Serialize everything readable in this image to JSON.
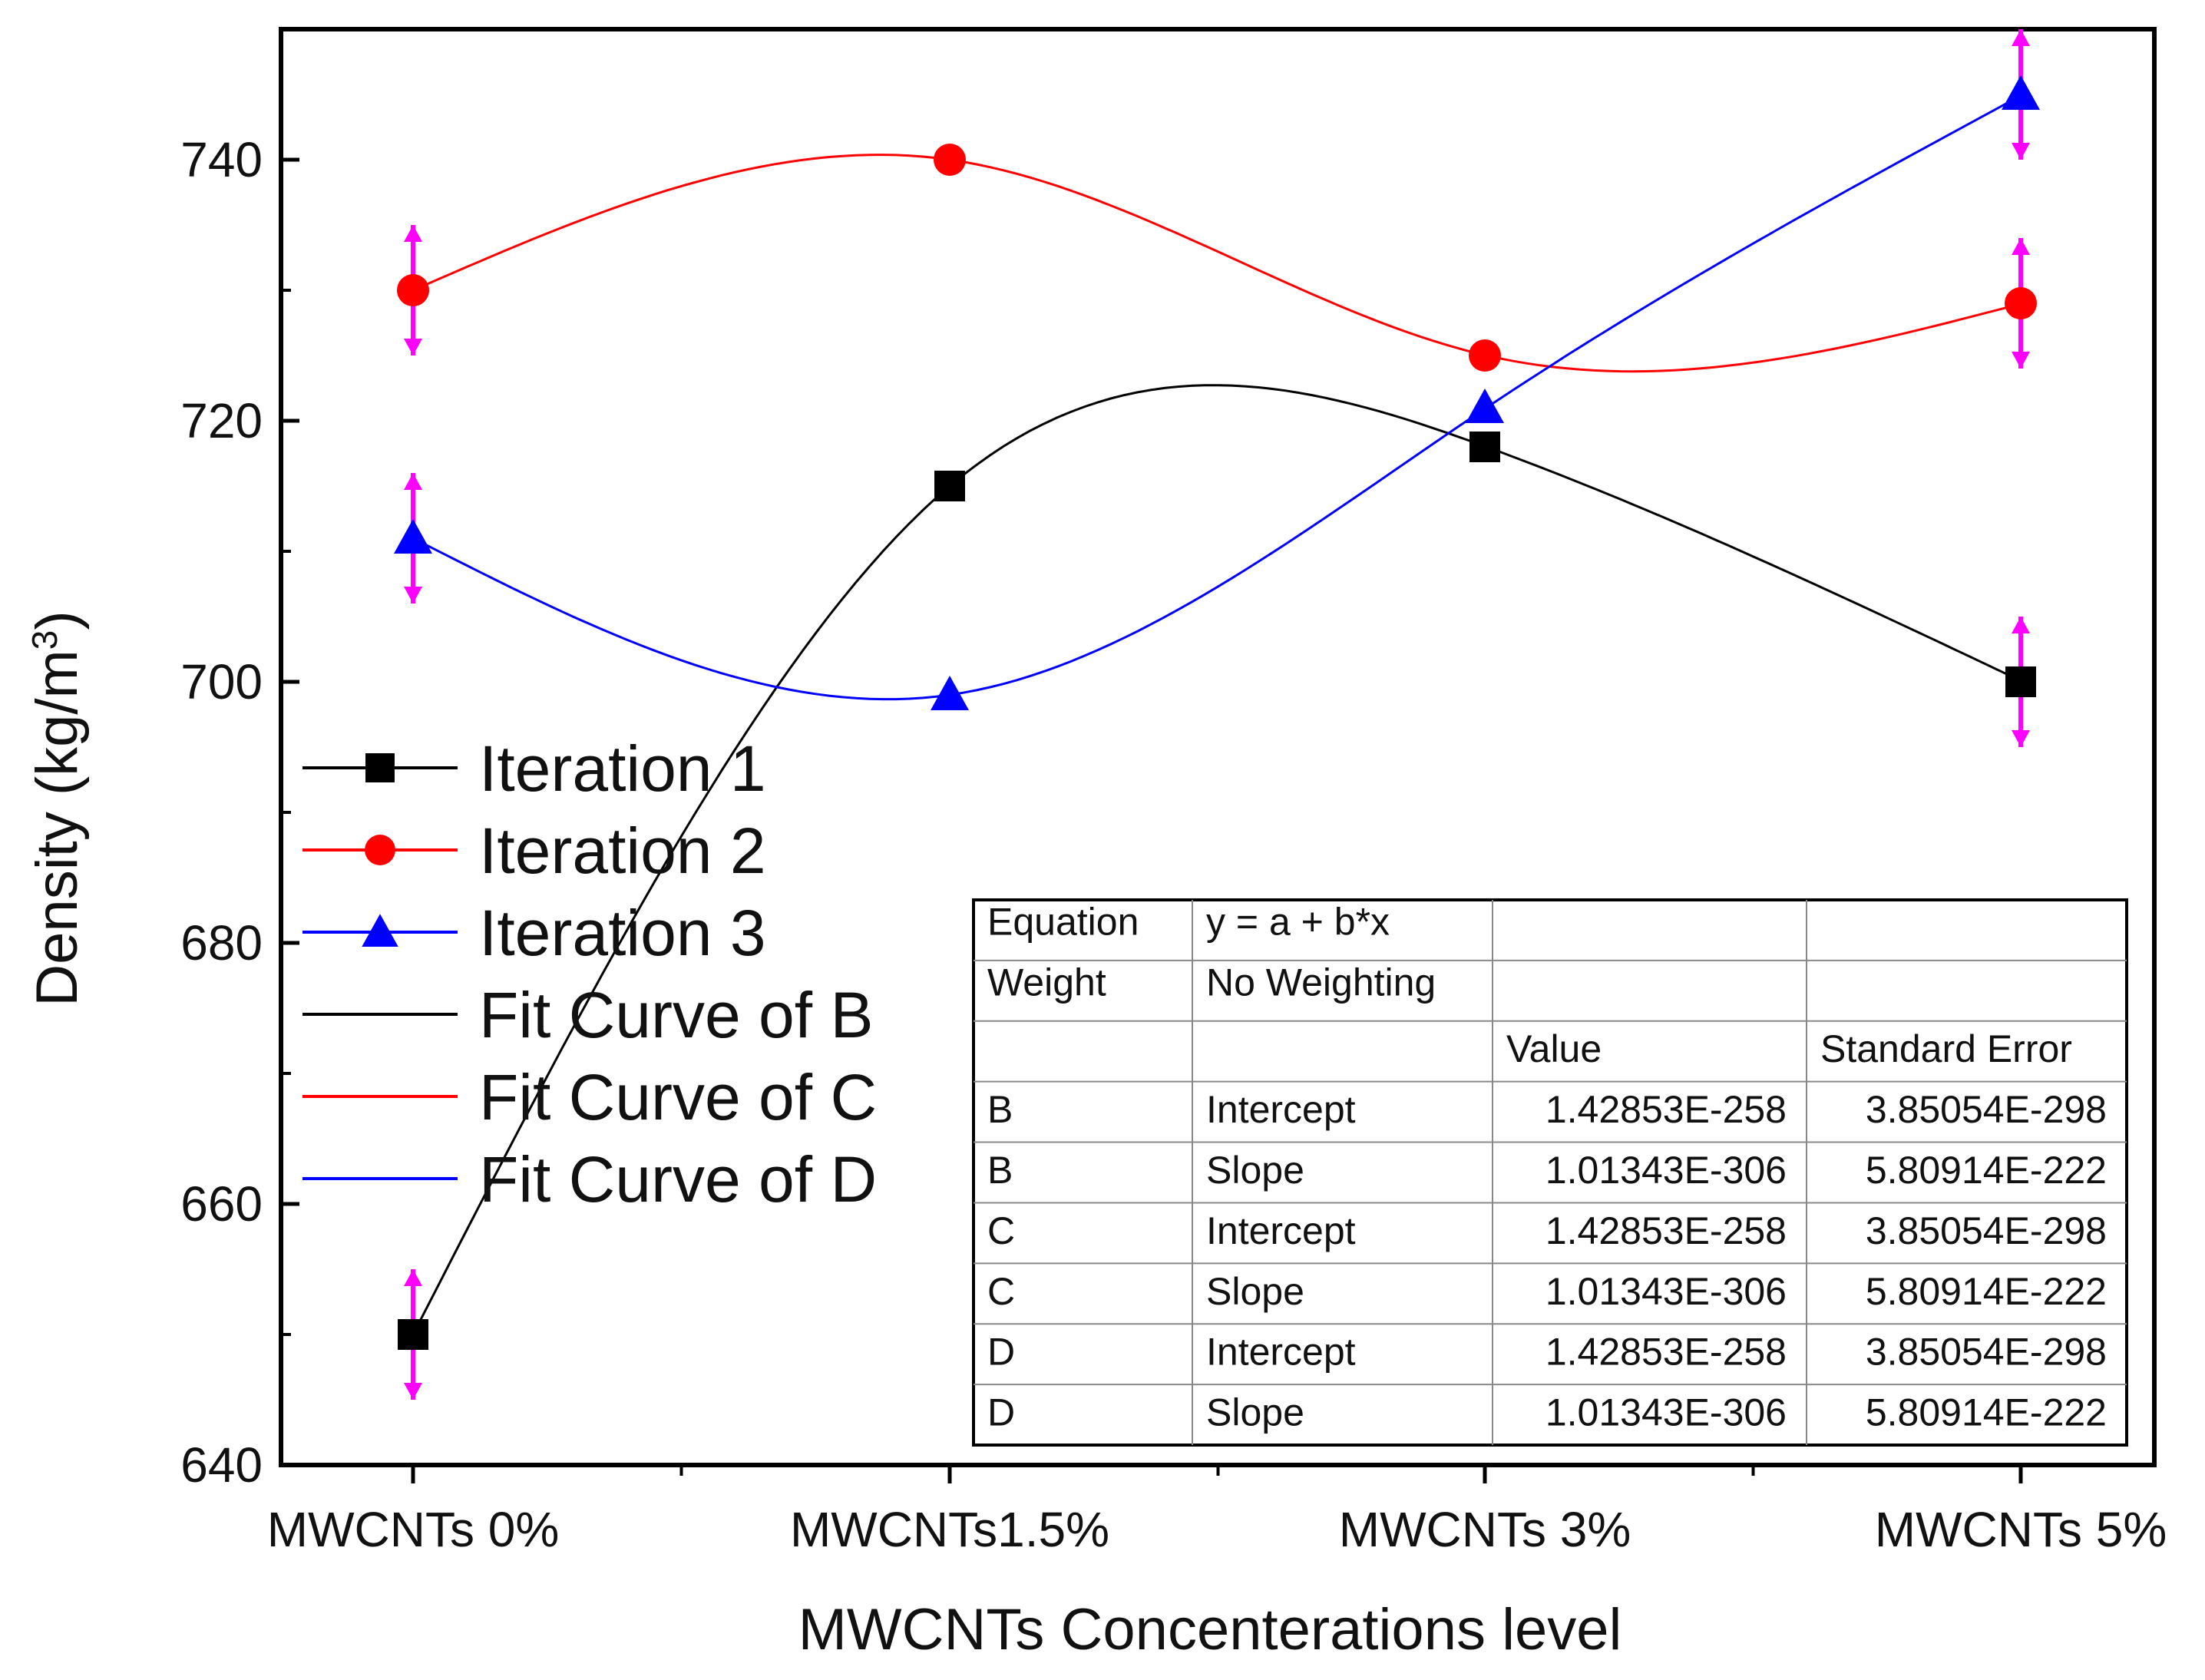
{
  "chart_data": {
    "type": "line",
    "xlabel": "MWCNTs Concenterations level",
    "ylabel": "Density (kg/m3)",
    "ylabel_base": "Density (kg/m",
    "ylabel_sup": "3",
    "ylabel_close": ")",
    "ylim": [
      640,
      750
    ],
    "yticks": [
      640,
      660,
      680,
      700,
      720,
      740
    ],
    "categories": [
      "MWCNTs 0%",
      "MWCNTs1.5%",
      "MWCNTs 3%",
      "MWCNTs 5%"
    ],
    "series": [
      {
        "name": "Iteration 1",
        "marker": "square",
        "color": "#000000",
        "values": [
          650,
          715,
          718,
          700
        ],
        "errors": [
          5,
          0,
          0,
          5
        ]
      },
      {
        "name": "Iteration 2",
        "marker": "circle",
        "color": "#ff0000",
        "values": [
          730,
          740,
          725,
          729
        ],
        "errors": [
          5,
          0,
          0,
          5
        ]
      },
      {
        "name": "Iteration 3",
        "marker": "triangle",
        "color": "#0000ff",
        "values": [
          711,
          699,
          721,
          745
        ],
        "errors": [
          5,
          0,
          0,
          5
        ]
      }
    ],
    "fit_curves": [
      {
        "name": "Fit Curve of B",
        "color": "#000000"
      },
      {
        "name": "Fit Curve of C",
        "color": "#ff0000"
      },
      {
        "name": "Fit Curve of D",
        "color": "#0000ff"
      }
    ],
    "error_bar_color": "#ff00ff",
    "legend_position": "middle-left",
    "fit_table": {
      "rows": [
        [
          "Equation",
          "y = a + b*x",
          "",
          ""
        ],
        [
          "Weight",
          "No Weighting",
          "",
          ""
        ],
        [
          "",
          "",
          "Value",
          "Standard Error"
        ],
        [
          "B",
          "Intercept",
          "1.42853E-258",
          "3.85054E-298"
        ],
        [
          "B",
          "Slope",
          "1.01343E-306",
          "5.80914E-222"
        ],
        [
          "C",
          "Intercept",
          "1.42853E-258",
          "3.85054E-298"
        ],
        [
          "C",
          "Slope",
          "1.01343E-306",
          "5.80914E-222"
        ],
        [
          "D",
          "Intercept",
          "1.42853E-258",
          "3.85054E-298"
        ],
        [
          "D",
          "Slope",
          "1.01343E-306",
          "5.80914E-222"
        ]
      ]
    }
  }
}
